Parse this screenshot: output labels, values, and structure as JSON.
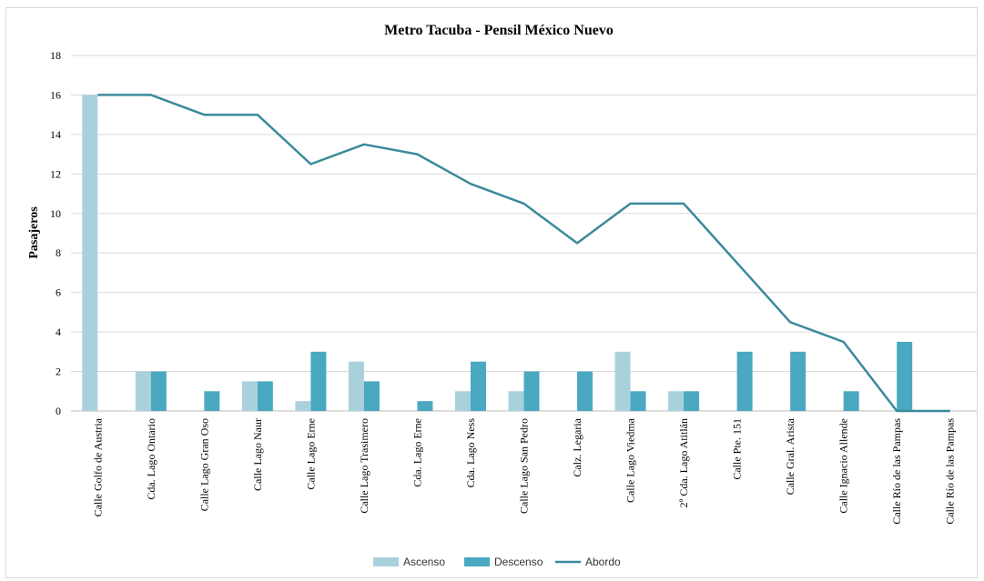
{
  "chart_data": {
    "type": "bar",
    "title": "Metro Tacuba - Pensil México Nuevo",
    "ylabel": "Pasajeros",
    "xlabel": "",
    "ylim": [
      0,
      18
    ],
    "yticks": [
      0,
      2,
      4,
      6,
      8,
      10,
      12,
      14,
      16,
      18
    ],
    "grid": true,
    "legend_position": "bottom",
    "categories": [
      "Calle Golfo de Austria",
      "Cda. Lago Ontario",
      "Calle Lago Gran Oso",
      "Calle Lago Naur",
      "Calle Lago Erne",
      "Calle Lago Trasimero",
      "Cda. Lago Erne",
      "Cda. Lago Ness",
      "Calle Lago San Pedro",
      "Calz. Legaria",
      "Calle Lago Viedma",
      "2º Cda. Lago Atitlán",
      "Calle Pte. 151",
      "Calle Gral. Arista",
      "Calle Ignacio Allende",
      "Calle Río de las Pampas",
      "Calle Río de las Pampas"
    ],
    "series": [
      {
        "name": "Ascenso",
        "type": "bar",
        "color": "#a9d1dc",
        "values": [
          16,
          2,
          0,
          1.5,
          0.5,
          2.5,
          0,
          1,
          1,
          0,
          3,
          1,
          0,
          0,
          0,
          0,
          0
        ]
      },
      {
        "name": "Descenso",
        "type": "bar",
        "color": "#4aa8c0",
        "values": [
          0,
          2,
          1,
          1.5,
          3,
          1.5,
          0.5,
          2.5,
          2,
          2,
          1,
          1,
          3,
          3,
          1,
          3.5,
          0
        ]
      },
      {
        "name": "Abordo",
        "type": "line",
        "color": "#3a8a9a",
        "values": [
          16,
          16,
          15,
          15,
          12.5,
          13.5,
          13,
          11.5,
          10.5,
          8.5,
          10.5,
          10.5,
          7.5,
          4.5,
          3.5,
          0,
          0
        ]
      }
    ]
  }
}
